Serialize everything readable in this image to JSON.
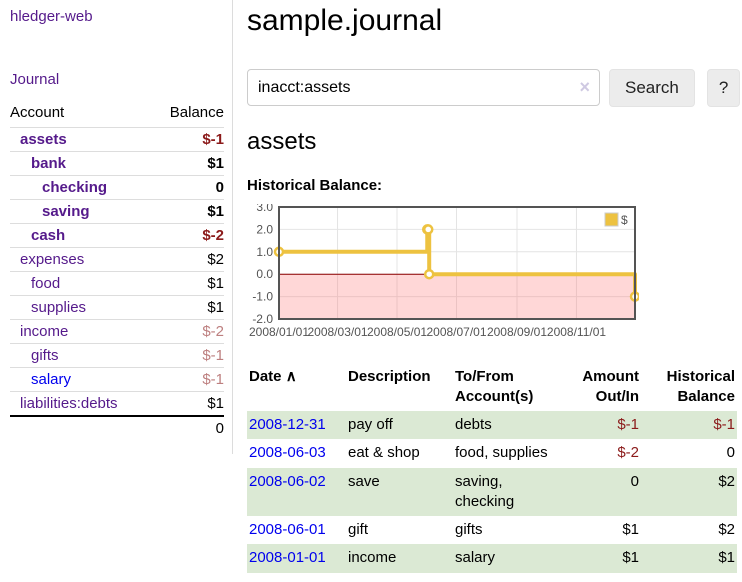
{
  "colors": {
    "link_purple": "#551a8b",
    "link_blue": "#0000ee",
    "negative_strong": "#8b1a1a",
    "negative_soft": "#bd7f7f",
    "row_stripe_green": "#dbe9d4",
    "series_gold": "#edc240",
    "zero_line_red": "#8b0000",
    "negative_region_pink": "#ffd9d9",
    "chart_border": "#545454",
    "button_bg": "#ececec"
  },
  "sidebar": {
    "app_title": "hledger-web",
    "nav": {
      "journal": "Journal"
    },
    "table": {
      "header": {
        "account": "Account",
        "balance": "Balance"
      },
      "accounts": [
        {
          "name": "assets",
          "balance": "$-1",
          "depth": 1,
          "bold": true
        },
        {
          "name": "bank",
          "balance": "$1",
          "depth": 2,
          "bold": true
        },
        {
          "name": "checking",
          "balance": "0",
          "depth": 3,
          "bold": true
        },
        {
          "name": "saving",
          "balance": "$1",
          "depth": 3,
          "bold": true
        },
        {
          "name": "cash",
          "balance": "$-2",
          "depth": 2,
          "bold": true
        },
        {
          "name": "expenses",
          "balance": "$2",
          "depth": 1
        },
        {
          "name": "food",
          "balance": "$1",
          "depth": 2
        },
        {
          "name": "supplies",
          "balance": "$1",
          "depth": 2
        },
        {
          "name": "income",
          "balance": "$-2",
          "depth": 1
        },
        {
          "name": "gifts",
          "balance": "$-1",
          "depth": 2
        },
        {
          "name": "salary",
          "balance": "$-1",
          "depth": 2,
          "unvisited": true
        },
        {
          "name": "liabilities:debts",
          "balance": "$1",
          "depth": 1
        }
      ],
      "total": "0"
    }
  },
  "main": {
    "title": "sample.journal",
    "search": {
      "value": "inacct:assets",
      "clear_icon": "×",
      "search_button": "Search",
      "help_button": "?"
    },
    "account_heading": "assets",
    "chart_heading": "Historical Balance:"
  },
  "chart_data": {
    "type": "line",
    "step": true,
    "title": "Historical Balance:",
    "series": [
      {
        "name": "$",
        "color": "#edc240",
        "points": [
          {
            "x": "2008-01-01",
            "y": 1
          },
          {
            "x": "2008-06-01",
            "y": 2
          },
          {
            "x": "2008-06-02",
            "y": 2
          },
          {
            "x": "2008-06-03",
            "y": 0
          },
          {
            "x": "2008-12-31",
            "y": -1
          }
        ]
      }
    ],
    "xlabel": "",
    "ylabel": "",
    "xlim": [
      "2008-01-01",
      "2008-12-31"
    ],
    "ylim": [
      -2,
      3
    ],
    "xticks": [
      "2008/01/01",
      "2008/03/01",
      "2008/05/01",
      "2008/07/01",
      "2008/09/01",
      "2008/11/01"
    ],
    "yticks": [
      3.0,
      2.0,
      1.0,
      0.0,
      -1.0,
      -2.0
    ],
    "legend_position": "top-right",
    "grid": true,
    "negative_region_shaded": true
  },
  "register": {
    "columns": [
      "Date",
      "Description",
      "To/From Account(s)",
      "Amount Out/In",
      "Historical Balance"
    ],
    "sort_indicator": "∧",
    "rows": [
      {
        "date": "2008-12-31",
        "description": "pay off",
        "accounts": "debts",
        "amount": "$-1",
        "balance": "$-1"
      },
      {
        "date": "2008-06-03",
        "description": "eat & shop",
        "accounts": "food, supplies",
        "amount": "$-2",
        "balance": "0"
      },
      {
        "date": "2008-06-02",
        "description": "save",
        "accounts": "saving, checking",
        "amount": "0",
        "balance": "$2"
      },
      {
        "date": "2008-06-01",
        "description": "gift",
        "accounts": "gifts",
        "amount": "$1",
        "balance": "$2"
      },
      {
        "date": "2008-01-01",
        "description": "income",
        "accounts": "salary",
        "amount": "$1",
        "balance": "$1"
      }
    ]
  }
}
